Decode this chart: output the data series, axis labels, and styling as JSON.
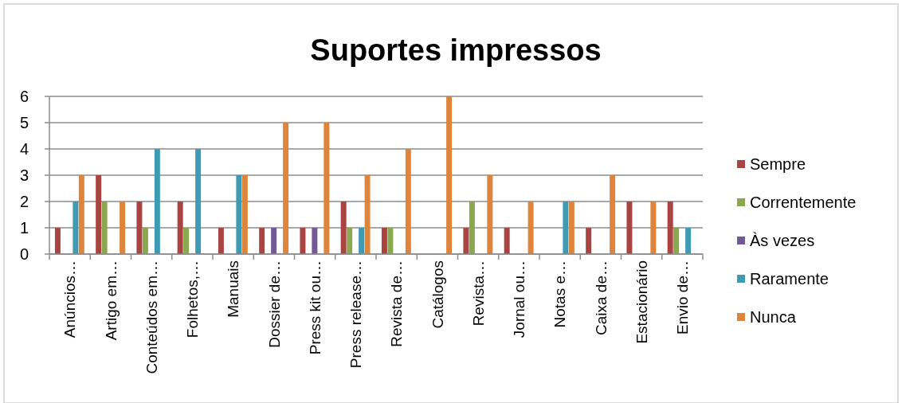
{
  "chart_data": {
    "type": "bar",
    "title": "Suportes impressos",
    "categories": [
      "Anúncios…",
      "Artigo em…",
      "Conteúdos em…",
      "Folhetos,…",
      "Manuais",
      "Dossier de…",
      "Press kit ou…",
      "Press release…",
      "Revista de…",
      "Catálogos",
      "Revista…",
      "Jornal ou…",
      "Notas e…",
      "Caixa de…",
      "Estacionário",
      "Envio de…"
    ],
    "series": [
      {
        "name": "Sempre",
        "color": "#a94442",
        "values": [
          1,
          3,
          2,
          2,
          1,
          1,
          1,
          2,
          1,
          null,
          1,
          1,
          null,
          1,
          2,
          2
        ]
      },
      {
        "name": "Correntemente",
        "color": "#8aa84e",
        "values": [
          null,
          2,
          1,
          1,
          null,
          null,
          null,
          1,
          1,
          null,
          2,
          null,
          null,
          null,
          null,
          1
        ]
      },
      {
        "name": "Às vezes",
        "color": "#735a97",
        "values": [
          null,
          null,
          null,
          null,
          null,
          1,
          1,
          null,
          null,
          null,
          null,
          null,
          null,
          null,
          null,
          null
        ]
      },
      {
        "name": "Raramente",
        "color": "#3f9ab3",
        "values": [
          2,
          null,
          4,
          4,
          3,
          null,
          null,
          1,
          null,
          null,
          null,
          null,
          2,
          null,
          null,
          1
        ]
      },
      {
        "name": "Nunca",
        "color": "#de843b",
        "values": [
          3,
          2,
          null,
          null,
          3,
          5,
          5,
          3,
          4,
          6,
          3,
          2,
          2,
          3,
          2,
          null
        ]
      }
    ],
    "ylim": [
      0,
      6
    ],
    "yticks": [
      0,
      1,
      2,
      3,
      4,
      5,
      6
    ],
    "grid": "y",
    "legend": "right"
  }
}
